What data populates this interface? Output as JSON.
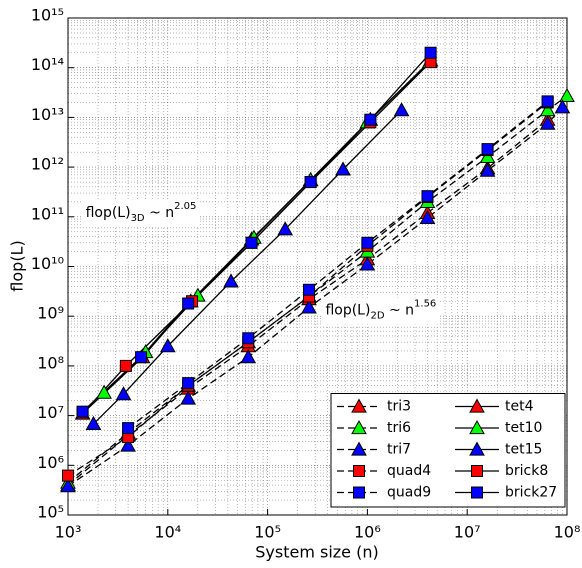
{
  "chart_data": {
    "type": "scatter",
    "xlabel": "System size (n)",
    "ylabel": "flop(L)",
    "xscale": "log",
    "yscale": "log",
    "grid": true,
    "legend_loc": "lower right",
    "xlim": [
      1000,
      100000000
    ],
    "xticks": [
      {
        "value": 1000,
        "label": "10³"
      },
      {
        "value": 10000,
        "label": "10⁴"
      },
      {
        "value": 100000,
        "label": "10⁵"
      },
      {
        "value": 1000000,
        "label": "10⁶"
      },
      {
        "value": 10000000,
        "label": "10⁷"
      },
      {
        "value": 100000000,
        "label": "10⁸"
      }
    ],
    "ylim": [
      100000,
      1000000000000000.0
    ],
    "yticks": [
      {
        "value": 100000,
        "label": "10⁵"
      },
      {
        "value": 1000000,
        "label": "10⁶"
      },
      {
        "value": 10000000,
        "label": "10⁷"
      },
      {
        "value": 100000000,
        "label": "10⁸"
      },
      {
        "value": 1000000000,
        "label": "10⁹"
      },
      {
        "value": 10000000000,
        "label": "10¹⁰"
      },
      {
        "value": 100000000000,
        "label": "10¹¹"
      },
      {
        "value": 1000000000000,
        "label": "10¹²"
      },
      {
        "value": 10000000000000,
        "label": "10¹³"
      },
      {
        "value": 100000000000000,
        "label": "10¹⁴"
      },
      {
        "value": 1000000000000000.0,
        "label": "10¹⁵"
      }
    ],
    "annotations": [
      {
        "text": "flop(L)",
        "subscript": "3D",
        "rest": " ~ n",
        "superscript": "2.05",
        "x": 1500,
        "y": 120000000000
      },
      {
        "text": "flop(L)",
        "subscript": "2D",
        "rest": " ~ n",
        "superscript": "1.56",
        "x": 380000,
        "y": 1300000000
      }
    ],
    "series": [
      {
        "name": "tri3",
        "color": "#ff0000",
        "marker": "triangle",
        "linestyle": "dashed",
        "x": [
          1000,
          4000,
          16000,
          64000,
          260000,
          1000000,
          4000000,
          16000000,
          64000000
        ],
        "values": [
          400000,
          4000000,
          35000000,
          250000000,
          2200000000,
          14000000000,
          120000000000,
          950000000000,
          9000000000000
        ]
      },
      {
        "name": "tri6",
        "color": "#00ff00",
        "marker": "triangle",
        "linestyle": "dashed",
        "x": [
          1000,
          4000,
          16000,
          64000,
          260000,
          1000000,
          4000000,
          16000000,
          64000000,
          100000000
        ],
        "values": [
          450000,
          4500000,
          40000000,
          300000000,
          2500000000,
          20000000000,
          200000000000,
          1600000000000,
          14000000000000,
          27000000000000
        ]
      },
      {
        "name": "tri7",
        "color": "#0000ff",
        "marker": "triangle",
        "linestyle": "dashed",
        "x": [
          1000,
          4000,
          16000,
          64000,
          260000,
          1000000,
          4000000,
          16000000,
          64000000,
          90000000
        ],
        "values": [
          380000,
          2500000,
          22000000,
          150000000,
          1500000000,
          11000000000,
          95000000000,
          850000000000,
          7500000000000,
          16000000000000
        ]
      },
      {
        "name": "quad4",
        "color": "#ff0000",
        "marker": "square",
        "linestyle": "dashed",
        "x": [
          1000,
          4000,
          16000,
          64000,
          260000,
          1000000,
          4000000,
          16000000,
          64000000
        ],
        "values": [
          620000,
          3700000,
          40000000,
          300000000,
          2500000000,
          26000000000,
          250000000000,
          2200000000000,
          20000000000000
        ]
      },
      {
        "name": "quad9",
        "color": "#0000ff",
        "marker": "square",
        "linestyle": "dashed",
        "x": [
          4000,
          16000,
          64000,
          260000,
          1000000,
          4000000,
          16000000,
          64000000
        ],
        "values": [
          5600000,
          45000000,
          360000000,
          3400000000,
          30000000000,
          260000000000,
          2300000000000,
          21000000000000
        ]
      },
      {
        "name": "tet4",
        "color": "#ff0000",
        "marker": "triangle",
        "linestyle": "solid",
        "x": [
          1400,
          5600,
          17000,
          69000,
          270000,
          1070000,
          4300000
        ],
        "values": [
          11000000,
          150000000,
          2000000000,
          35000000000,
          550000000000,
          9000000000000,
          140000000000000
        ]
      },
      {
        "name": "tet10",
        "color": "#00ff00",
        "marker": "triangle",
        "linestyle": "solid",
        "x": [
          2300,
          6000,
          20000,
          73000,
          270000,
          1000000,
          4200000
        ],
        "values": [
          29000000,
          190000000,
          2600000000,
          38000000000,
          550000000000,
          8000000000000,
          130000000000000
        ]
      },
      {
        "name": "tet15",
        "color": "#0000ff",
        "marker": "triangle",
        "linestyle": "solid",
        "x": [
          1800,
          3600,
          10000,
          43000,
          150000,
          570000,
          2200000
        ],
        "values": [
          6800000,
          27000000,
          250000000,
          5000000000,
          56000000000,
          900000000000,
          14000000000000
        ]
      },
      {
        "name": "brick8",
        "color": "#ff0000",
        "marker": "square",
        "linestyle": "solid",
        "x": [
          1400,
          3800,
          17500,
          69000,
          270000,
          1070000,
          4300000
        ],
        "values": [
          11000000,
          100000000,
          2000000000,
          30000000000,
          500000000000,
          8000000000000,
          130000000000000
        ]
      },
      {
        "name": "brick27",
        "color": "#0000ff",
        "marker": "square",
        "linestyle": "solid",
        "x": [
          1400,
          5400,
          16000,
          69000,
          270000,
          1070000,
          4300000
        ],
        "values": [
          12000000,
          150000000,
          1800000000,
          30000000000,
          500000000000,
          9000000000000,
          200000000000000
        ]
      }
    ]
  }
}
